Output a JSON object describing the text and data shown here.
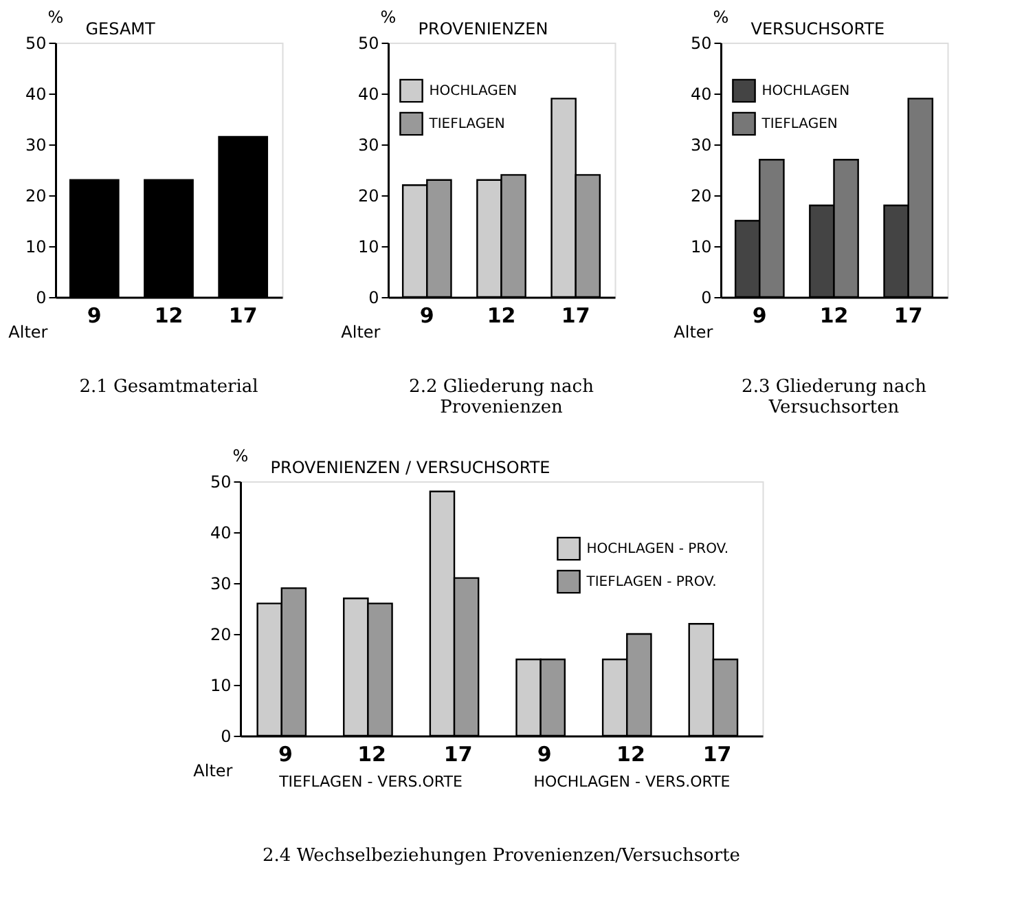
{
  "chart_data": [
    {
      "type": "bar",
      "title": "2.1 Gesamtmaterial",
      "subtitle": "GESAMT",
      "xlabel": "Alter",
      "ylabel": "%",
      "categories": [
        "9",
        "12",
        "17"
      ],
      "values": [
        23,
        23,
        31.5
      ],
      "color": "#000000",
      "ylim": [
        0,
        50
      ],
      "yticks": [
        0,
        10,
        20,
        30,
        40,
        50
      ],
      "grid": false
    },
    {
      "type": "bar",
      "title": "2.2 Gliederung nach Provenienzen",
      "subtitle": "PROVENIENZEN",
      "xlabel": "Alter",
      "ylabel": "%",
      "categories": [
        "9",
        "12",
        "17"
      ],
      "series": [
        {
          "name": "HOCHLAGEN",
          "color": "#cccccc",
          "values": [
            22,
            23,
            39
          ]
        },
        {
          "name": "TIEFLAGEN",
          "color": "#999999",
          "values": [
            23,
            24,
            24
          ]
        }
      ],
      "ylim": [
        0,
        50
      ],
      "yticks": [
        0,
        10,
        20,
        30,
        40,
        50
      ],
      "grid": false,
      "legend": "top left"
    },
    {
      "type": "bar",
      "title": "2.3 Gliederung nach Versuchsorten",
      "subtitle": "VERSUCHSORTE",
      "xlabel": "Alter",
      "ylabel": "%",
      "categories": [
        "9",
        "12",
        "17"
      ],
      "series": [
        {
          "name": "HOCHLAGEN",
          "color": "#444444",
          "values": [
            15,
            18,
            18
          ]
        },
        {
          "name": "TIEFLAGEN",
          "color": "#777777",
          "values": [
            27,
            27,
            39
          ]
        }
      ],
      "ylim": [
        0,
        50
      ],
      "yticks": [
        0,
        10,
        20,
        30,
        40,
        50
      ],
      "grid": false,
      "legend": "top left"
    },
    {
      "type": "bar",
      "title": "2.4 Wechselbeziehungen Provenienzen/Versuchsorte",
      "subtitle": "PROVENIENZEN / VERSUCHSORTE",
      "xlabel": "Alter",
      "ylabel": "%",
      "categories": [
        "9",
        "12",
        "17",
        "9",
        "12",
        "17"
      ],
      "series": [
        {
          "name": "HOCHLAGEN - PROV.",
          "color": "#cccccc",
          "values": [
            26,
            27,
            48,
            15,
            15,
            22
          ]
        },
        {
          "name": "TIEFLAGEN - PROV.",
          "color": "#999999",
          "values": [
            29,
            26,
            31,
            15,
            20,
            15
          ]
        }
      ],
      "ylim": [
        0,
        50
      ],
      "yticks": [
        0,
        10,
        20,
        30,
        40,
        50
      ],
      "grid": false,
      "legend": "top right",
      "annotations": [
        "TIEFLAGEN - VERS.ORTE",
        "HOCHLAGEN - VERS.ORTE"
      ]
    }
  ]
}
